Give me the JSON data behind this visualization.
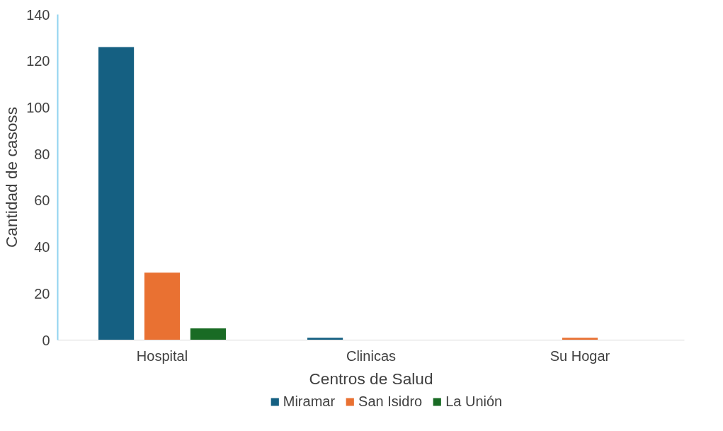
{
  "chart_data": {
    "type": "bar",
    "xlabel": "Centros de Salud",
    "ylabel": "Cantidad de casoss",
    "categories": [
      "Hospital",
      "Clinicas",
      "Su Hogar"
    ],
    "series": [
      {
        "name": "Miramar",
        "color": "#156082",
        "values": [
          126,
          1,
          0
        ]
      },
      {
        "name": "San Isidro",
        "color": "#e97132",
        "values": [
          29,
          0,
          1
        ]
      },
      {
        "name": "La Unión",
        "color": "#196b24",
        "values": [
          5,
          0,
          0
        ]
      }
    ],
    "ylim": [
      0,
      140
    ],
    "yticks": [
      0,
      20,
      40,
      60,
      80,
      100,
      120,
      140
    ],
    "grid": false,
    "legend": "bottom"
  }
}
